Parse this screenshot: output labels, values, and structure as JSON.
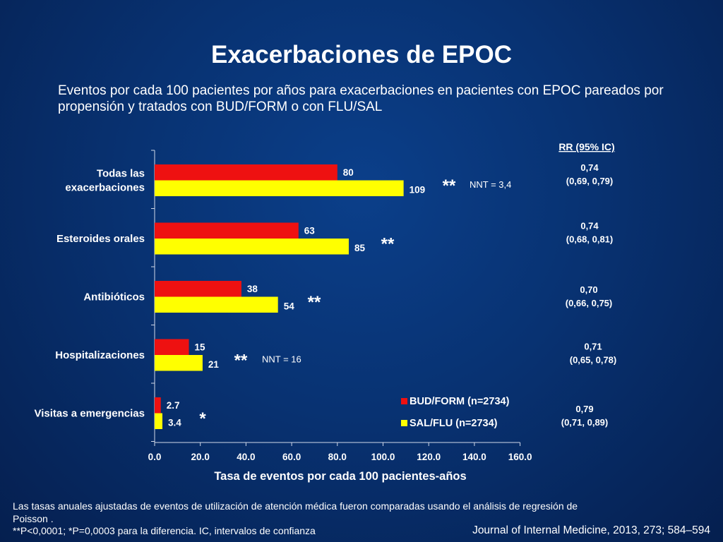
{
  "title": "Exacerbaciones de EPOC",
  "subtitle": "Eventos por cada 100 pacientes por años para exacerbaciones en pacientes con EPOC pareados por propensión y tratados con BUD/FORM o con FLU/SAL",
  "chart_data": {
    "type": "bar",
    "orientation": "horizontal",
    "categories": [
      "Todas las exacerbaciones",
      "Esteroides orales",
      "Antibióticos",
      "Hospitalizaciones",
      "Visitas a emergencias"
    ],
    "category_lines": [
      [
        "Todas las",
        "exacerbaciones"
      ],
      [
        "Esteroides orales"
      ],
      [
        "Antibióticos"
      ],
      [
        "Hospitalizaciones"
      ],
      [
        "Visitas a emergencias"
      ]
    ],
    "series": [
      {
        "name": "BUD/FORM (n=2734)",
        "color": "#ee1111",
        "values": [
          80,
          63,
          38,
          15,
          2.7
        ],
        "labels": [
          "80",
          "63",
          "38",
          "15",
          "2.7"
        ]
      },
      {
        "name": "SAL/FLU (n=2734)",
        "color": "#ffff00",
        "values": [
          109,
          85,
          54,
          21,
          3.4
        ],
        "labels": [
          "109",
          "85",
          "54",
          "21",
          "3.4"
        ]
      }
    ],
    "significance": [
      "**",
      "**",
      "**",
      "**",
      "*"
    ],
    "nnt": [
      "NNT = 3,4",
      "",
      "",
      "NNT = 16",
      ""
    ],
    "rr_header": "RR (95% IC)",
    "rr": [
      [
        "0,74",
        "(0,69, 0,79)"
      ],
      [
        "0,74",
        "(0,68, 0,81)"
      ],
      [
        "0,70",
        "(0,66, 0,75)"
      ],
      [
        "0,71",
        "(0,65, 0,78)"
      ],
      [
        "0,79",
        "(0,71, 0,89)"
      ]
    ],
    "xlabel": "Tasa de eventos por cada 100 pacientes-años",
    "ylabel": "",
    "xlim": [
      0,
      160
    ],
    "xticks": [
      "0.0",
      "20.0",
      "40.0",
      "60.0",
      "80.0",
      "100.0",
      "120.0",
      "140.0",
      "160.0"
    ],
    "grid": false,
    "legend_position": "bottom-right"
  },
  "footnote_line1": "Las tasas anuales ajustadas de eventos de utilización  de  atención  médica fueron comparadas usando el análisis de regresión de Poisson .",
  "footnote_line2": "**P<0,0001; *P=0,0003 para la diferencia. IC, intervalos de confianza",
  "citation": "Journal of Internal Medicine, 2013, 273; 584–594"
}
